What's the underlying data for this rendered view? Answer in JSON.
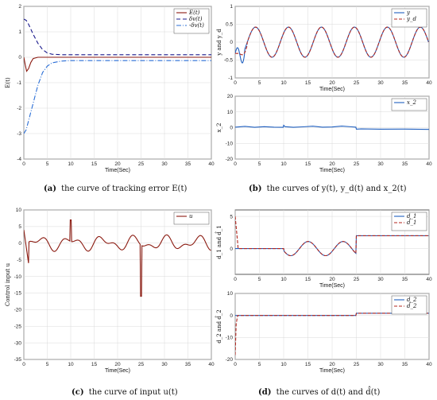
{
  "colors": {
    "blue": "#1f5fbf",
    "red": "#b3261e",
    "darkred": "#8b1a10",
    "navy": "#1a1a8c",
    "dashblue": "#2a6ed6",
    "grid": "#d9d9d9"
  },
  "captions": {
    "a": {
      "tag": "(a)",
      "text": "the curve of tracking error E(t)"
    },
    "b": {
      "tag": "(b)",
      "text": "the curves of y(t), y_d(t) and x_2(t)"
    },
    "c": {
      "tag": "(c)",
      "text": "the curve of input u(t)"
    },
    "d": {
      "tag": "(d)",
      "text": "the curves of d(t) and d̂(t)"
    }
  },
  "chart_data": [
    {
      "id": "a",
      "type": "line",
      "xlabel": "Time(Sec)",
      "ylabel": "E(t)",
      "xlim": [
        0,
        40
      ],
      "ylim": [
        -4,
        2
      ],
      "xticks": [
        0,
        5,
        10,
        15,
        20,
        25,
        30,
        35,
        40
      ],
      "yticks": [
        -4,
        -3,
        -2,
        -1,
        0,
        1,
        2
      ],
      "grid": true,
      "legend_position": "top-right",
      "series": [
        {
          "name": "E(t)",
          "color": "#8b1a10",
          "dash": "none",
          "x": [
            0,
            0.3,
            0.6,
            1,
            1.5,
            2,
            3,
            4,
            6,
            10,
            20,
            30,
            40
          ],
          "y": [
            0,
            -0.3,
            -0.55,
            -0.45,
            -0.2,
            -0.05,
            0,
            0,
            0,
            0,
            0,
            0,
            0
          ]
        },
        {
          "name": "δv(t)",
          "color": "#1a1a8c",
          "dash": "5,3",
          "x": [
            0,
            0.5,
            1,
            2,
            3,
            4,
            5,
            6,
            8,
            10,
            20,
            30,
            40
          ],
          "y": [
            1.5,
            1.45,
            1.3,
            0.9,
            0.55,
            0.3,
            0.17,
            0.12,
            0.1,
            0.1,
            0.1,
            0.1,
            0.1
          ]
        },
        {
          "name": "-δv(t)",
          "color": "#2a6ed6",
          "dash": "6,2,1,2",
          "x": [
            0,
            0.5,
            1,
            2,
            3,
            4,
            5,
            6,
            8,
            10,
            20,
            30,
            40
          ],
          "y": [
            -3,
            -2.85,
            -2.5,
            -1.8,
            -1.1,
            -0.6,
            -0.35,
            -0.22,
            -0.15,
            -0.13,
            -0.13,
            -0.13,
            -0.13
          ]
        }
      ]
    },
    {
      "id": "b1",
      "type": "line",
      "xlabel": "Time(Sec)",
      "ylabel": "y and y_d",
      "xlim": [
        0,
        40
      ],
      "ylim": [
        -1,
        1
      ],
      "xticks": [
        0,
        5,
        10,
        15,
        20,
        25,
        30,
        35,
        40
      ],
      "yticks": [
        -1,
        -0.5,
        0,
        0.5,
        1
      ],
      "grid": true,
      "legend_position": "top-right",
      "series": [
        {
          "name": "y",
          "color": "#1f5fbf",
          "dash": "none",
          "kind": "y"
        },
        {
          "name": "y_d",
          "color": "#b3261e",
          "dash": "4,2",
          "kind": "yd"
        }
      ]
    },
    {
      "id": "b2",
      "type": "line",
      "xlabel": "Time(Sec)",
      "ylabel": "x_2",
      "xlim": [
        0,
        40
      ],
      "ylim": [
        -20,
        20
      ],
      "xticks": [
        0,
        5,
        10,
        15,
        20,
        25,
        30,
        35,
        40
      ],
      "yticks": [
        -20,
        -10,
        0,
        10,
        20
      ],
      "grid": true,
      "legend_position": "top-right",
      "series": [
        {
          "name": "x_2",
          "color": "#1f5fbf",
          "dash": "none",
          "x": [
            0,
            2,
            4,
            6,
            8,
            9.9,
            10,
            10.3,
            12,
            14,
            16,
            18,
            20,
            22,
            24,
            24.9,
            25,
            26,
            30,
            35,
            40
          ],
          "y": [
            0.3,
            0.8,
            0.2,
            0.6,
            0.3,
            0.2,
            1.5,
            0.6,
            0.2,
            0.5,
            0.9,
            0.3,
            0.4,
            1.0,
            0.5,
            0.3,
            -1.0,
            -0.8,
            -1.0,
            -0.9,
            -1.1
          ]
        }
      ]
    },
    {
      "id": "c",
      "type": "line",
      "xlabel": "Time(Sec)",
      "ylabel": "Control input u",
      "xlim": [
        0,
        40
      ],
      "ylim": [
        -35,
        10
      ],
      "xticks": [
        0,
        5,
        10,
        15,
        20,
        25,
        30,
        35,
        40
      ],
      "yticks": [
        -35,
        -30,
        -25,
        -20,
        -15,
        -10,
        -5,
        0,
        5,
        10
      ],
      "grid": true,
      "legend_position": "top-right",
      "series": [
        {
          "name": "u",
          "color": "#8b1a10",
          "dash": "none",
          "kind": "u"
        }
      ]
    },
    {
      "id": "d1",
      "type": "line",
      "xlabel": "Time(Sec)",
      "ylabel": "d_1 and d̂_1",
      "xlim": [
        0,
        40
      ],
      "ylim": [
        -4,
        6
      ],
      "xticks": [
        0,
        5,
        10,
        15,
        20,
        25,
        30,
        35,
        40
      ],
      "yticks": [
        0,
        5
      ],
      "grid": true,
      "legend_position": "top-right",
      "series": [
        {
          "name": "d_1",
          "color": "#1f5fbf",
          "dash": "none",
          "kind": "d1"
        },
        {
          "name": "d̂_1",
          "color": "#b3261e",
          "dash": "4,2",
          "kind": "d1hat"
        }
      ]
    },
    {
      "id": "d2",
      "type": "line",
      "xlabel": "Time(Sec)",
      "ylabel": "d_2 and d̂_2",
      "xlim": [
        0,
        40
      ],
      "ylim": [
        -20,
        10
      ],
      "xticks": [
        0,
        5,
        10,
        15,
        20,
        25,
        30,
        35,
        40
      ],
      "yticks": [
        -20,
        -10,
        0,
        10
      ],
      "grid": true,
      "legend_position": "top-right",
      "series": [
        {
          "name": "d_2",
          "color": "#1f5fbf",
          "dash": "none",
          "x": [
            0,
            10,
            15,
            20,
            24.9,
            25,
            30,
            35,
            40
          ],
          "y": [
            0,
            0,
            0,
            0,
            0,
            1,
            1,
            1,
            1
          ]
        },
        {
          "name": "d̂_2",
          "color": "#b3261e",
          "dash": "4,2",
          "x": [
            0,
            0.2,
            0.5,
            1,
            10,
            15,
            20,
            24.9,
            25,
            30,
            35,
            40
          ],
          "y": [
            -18,
            -4,
            0,
            0,
            0,
            0,
            0,
            0,
            1,
            1,
            1,
            1
          ]
        }
      ]
    }
  ]
}
